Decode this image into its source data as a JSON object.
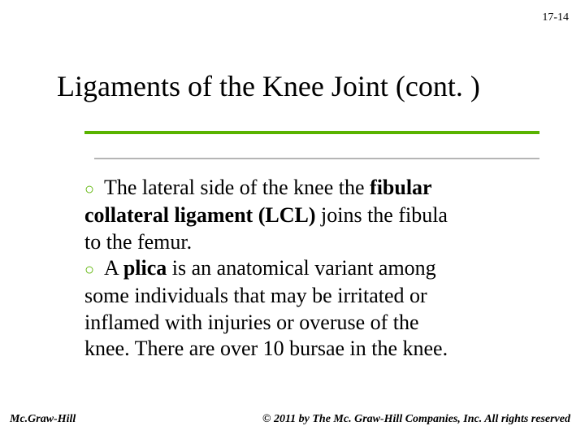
{
  "page_number": "17-14",
  "title": "Ligaments of the Knee Joint (cont. )",
  "accent_color": "#59b300",
  "bullets": [
    {
      "pre": "The lateral side of the knee the ",
      "bold1": "fibular",
      "line2_bold": "collateral ligament (LCL) ",
      "line2_rest": "joins the fibula",
      "line3": "to the femur."
    },
    {
      "pre": "A ",
      "bold1": "plica ",
      "rest1": "is an anatomical variant among",
      "line2": "some individuals that may be irritated or",
      "line3": "inflamed with injuries or overuse of the",
      "line4": "knee. There are over 10 bursae in the knee."
    }
  ],
  "footer_left": "Mc.Graw-Hill",
  "footer_right": "© 2011 by The Mc. Graw-Hill Companies, Inc. All rights reserved"
}
